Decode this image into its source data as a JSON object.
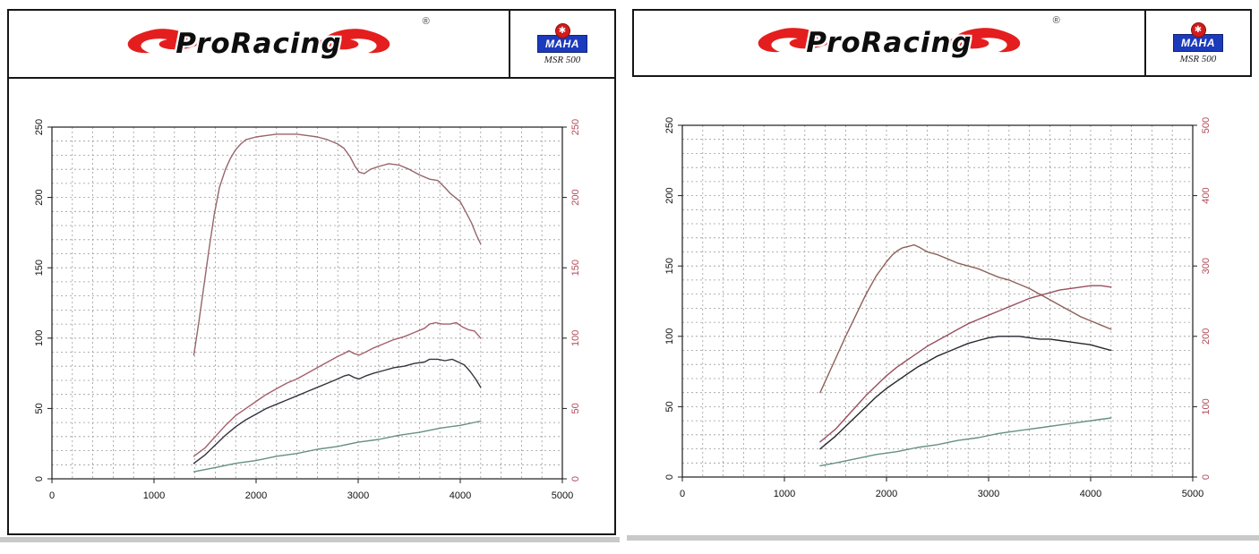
{
  "panels": [
    {
      "brand": "ProRacing",
      "registered": "®",
      "maha": {
        "name": "MAHA",
        "model": "MSR 500"
      }
    },
    {
      "brand": "ProRacing",
      "registered": "®",
      "maha": {
        "name": "MAHA",
        "model": "MSR 500"
      }
    }
  ],
  "chart_data": [
    {
      "type": "line",
      "title": "",
      "xlabel": "",
      "ylabel": "",
      "grid": "dashed",
      "x_axis": {
        "min": 0,
        "max": 5000,
        "minor_step": 200,
        "ticks": [
          0,
          1000,
          2000,
          3000,
          4000,
          5000
        ]
      },
      "y_left": {
        "min": 0,
        "max": 250,
        "minor_step": 10,
        "ticks": [
          0,
          50,
          100,
          150,
          200,
          250
        ],
        "color": "#111111"
      },
      "y_right": {
        "min": 0,
        "max": 250,
        "ticks": [
          0,
          50,
          100,
          150,
          200,
          250
        ],
        "color": "#b24a58"
      },
      "series": [
        {
          "name": "torque-maroon",
          "color": "#96666c",
          "axis": "left",
          "points": [
            [
              1390,
              88
            ],
            [
              1440,
              112
            ],
            [
              1490,
              138
            ],
            [
              1540,
              164
            ],
            [
              1590,
              188
            ],
            [
              1640,
              207
            ],
            [
              1700,
              220
            ],
            [
              1750,
              228
            ],
            [
              1800,
              234
            ],
            [
              1850,
              238
            ],
            [
              1900,
              241
            ],
            [
              2000,
              243
            ],
            [
              2100,
              244
            ],
            [
              2200,
              245
            ],
            [
              2300,
              245
            ],
            [
              2400,
              245
            ],
            [
              2500,
              244
            ],
            [
              2600,
              243
            ],
            [
              2700,
              241
            ],
            [
              2800,
              238
            ],
            [
              2860,
              235
            ],
            [
              2920,
              229
            ],
            [
              2970,
              222
            ],
            [
              3010,
              218
            ],
            [
              3060,
              217
            ],
            [
              3120,
              220
            ],
            [
              3200,
              222
            ],
            [
              3300,
              224
            ],
            [
              3400,
              223
            ],
            [
              3500,
              220
            ],
            [
              3600,
              216
            ],
            [
              3700,
              213
            ],
            [
              3780,
              212
            ],
            [
              3850,
              207
            ],
            [
              3900,
              203
            ],
            [
              3950,
              200
            ],
            [
              4000,
              197
            ],
            [
              4060,
              189
            ],
            [
              4110,
              182
            ],
            [
              4160,
              173
            ],
            [
              4200,
              167
            ]
          ]
        },
        {
          "name": "power-red",
          "color": "#a4606c",
          "axis": "left",
          "points": [
            [
              1390,
              16
            ],
            [
              1500,
              22
            ],
            [
              1600,
              30
            ],
            [
              1700,
              38
            ],
            [
              1800,
              45
            ],
            [
              1900,
              50
            ],
            [
              2000,
              55
            ],
            [
              2100,
              60
            ],
            [
              2200,
              64
            ],
            [
              2300,
              68
            ],
            [
              2400,
              71
            ],
            [
              2500,
              75
            ],
            [
              2600,
              79
            ],
            [
              2700,
              83
            ],
            [
              2800,
              87
            ],
            [
              2860,
              89
            ],
            [
              2910,
              91
            ],
            [
              2960,
              89
            ],
            [
              3010,
              88
            ],
            [
              3070,
              90
            ],
            [
              3150,
              93
            ],
            [
              3250,
              96
            ],
            [
              3350,
              99
            ],
            [
              3450,
              101
            ],
            [
              3550,
              104
            ],
            [
              3650,
              107
            ],
            [
              3700,
              110
            ],
            [
              3760,
              111
            ],
            [
              3820,
              110
            ],
            [
              3900,
              110
            ],
            [
              3960,
              111
            ],
            [
              4020,
              108
            ],
            [
              4080,
              106
            ],
            [
              4140,
              105
            ],
            [
              4200,
              100
            ]
          ]
        },
        {
          "name": "power-dark",
          "color": "#34343f",
          "axis": "left",
          "points": [
            [
              1390,
              11
            ],
            [
              1500,
              17
            ],
            [
              1600,
              24
            ],
            [
              1700,
              31
            ],
            [
              1800,
              37
            ],
            [
              1900,
              42
            ],
            [
              2000,
              46
            ],
            [
              2100,
              50
            ],
            [
              2200,
              53
            ],
            [
              2300,
              56
            ],
            [
              2400,
              59
            ],
            [
              2500,
              62
            ],
            [
              2600,
              65
            ],
            [
              2700,
              68
            ],
            [
              2800,
              71
            ],
            [
              2860,
              73
            ],
            [
              2910,
              74
            ],
            [
              2960,
              72
            ],
            [
              3010,
              71
            ],
            [
              3070,
              73
            ],
            [
              3150,
              75
            ],
            [
              3250,
              77
            ],
            [
              3350,
              79
            ],
            [
              3450,
              80
            ],
            [
              3550,
              82
            ],
            [
              3650,
              83
            ],
            [
              3700,
              85
            ],
            [
              3780,
              85
            ],
            [
              3850,
              84
            ],
            [
              3920,
              85
            ],
            [
              3980,
              83
            ],
            [
              4040,
              81
            ],
            [
              4100,
              76
            ],
            [
              4150,
              71
            ],
            [
              4200,
              65
            ]
          ]
        },
        {
          "name": "baseline-green",
          "color": "#66907f",
          "axis": "left",
          "points": [
            [
              1390,
              5
            ],
            [
              1600,
              8
            ],
            [
              1800,
              11
            ],
            [
              2000,
              13
            ],
            [
              2200,
              16
            ],
            [
              2400,
              18
            ],
            [
              2600,
              21
            ],
            [
              2800,
              23
            ],
            [
              3000,
              26
            ],
            [
              3200,
              28
            ],
            [
              3400,
              31
            ],
            [
              3600,
              33
            ],
            [
              3800,
              36
            ],
            [
              4000,
              38
            ],
            [
              4200,
              41
            ]
          ]
        }
      ]
    },
    {
      "type": "line",
      "title": "",
      "xlabel": "",
      "ylabel": "",
      "grid": "dashed",
      "x_axis": {
        "min": 0,
        "max": 5000,
        "minor_step": 200,
        "ticks": [
          0,
          1000,
          2000,
          3000,
          4000,
          5000
        ]
      },
      "y_left": {
        "min": 0,
        "max": 250,
        "minor_step": 10,
        "ticks": [
          0,
          50,
          100,
          150,
          200,
          250
        ],
        "color": "#111111"
      },
      "y_right": {
        "min": 0,
        "max": 500,
        "ticks": [
          0,
          100,
          200,
          300,
          400,
          500
        ],
        "color": "#b24a58"
      },
      "series": [
        {
          "name": "torque-brown",
          "color": "#8d6058",
          "axis": "left",
          "points": [
            [
              1350,
              60
            ],
            [
              1400,
              68
            ],
            [
              1500,
              84
            ],
            [
              1600,
              100
            ],
            [
              1700,
              115
            ],
            [
              1800,
              130
            ],
            [
              1900,
              143
            ],
            [
              2000,
              153
            ],
            [
              2060,
              158
            ],
            [
              2110,
              161
            ],
            [
              2160,
              163
            ],
            [
              2220,
              164
            ],
            [
              2270,
              165
            ],
            [
              2330,
              163
            ],
            [
              2400,
              160
            ],
            [
              2500,
              158
            ],
            [
              2600,
              155
            ],
            [
              2700,
              152
            ],
            [
              2800,
              150
            ],
            [
              2900,
              148
            ],
            [
              3000,
              145
            ],
            [
              3100,
              142
            ],
            [
              3200,
              140
            ],
            [
              3300,
              137
            ],
            [
              3400,
              134
            ],
            [
              3500,
              130
            ],
            [
              3600,
              126
            ],
            [
              3700,
              122
            ],
            [
              3800,
              118
            ],
            [
              3900,
              114
            ],
            [
              4000,
              111
            ],
            [
              4100,
              108
            ],
            [
              4200,
              105
            ]
          ]
        },
        {
          "name": "power-red",
          "color": "#9a4e5e",
          "axis": "left",
          "points": [
            [
              1350,
              25
            ],
            [
              1400,
              28
            ],
            [
              1500,
              34
            ],
            [
              1600,
              42
            ],
            [
              1700,
              50
            ],
            [
              1800,
              58
            ],
            [
              1900,
              65
            ],
            [
              2000,
              72
            ],
            [
              2100,
              78
            ],
            [
              2200,
              83
            ],
            [
              2300,
              88
            ],
            [
              2400,
              93
            ],
            [
              2500,
              97
            ],
            [
              2600,
              101
            ],
            [
              2700,
              105
            ],
            [
              2800,
              109
            ],
            [
              2900,
              112
            ],
            [
              3000,
              115
            ],
            [
              3100,
              118
            ],
            [
              3200,
              121
            ],
            [
              3300,
              124
            ],
            [
              3400,
              127
            ],
            [
              3500,
              129
            ],
            [
              3600,
              131
            ],
            [
              3700,
              133
            ],
            [
              3800,
              134
            ],
            [
              3900,
              135
            ],
            [
              4000,
              136
            ],
            [
              4100,
              136
            ],
            [
              4200,
              135
            ]
          ]
        },
        {
          "name": "power-dark",
          "color": "#26262e",
          "axis": "left",
          "points": [
            [
              1350,
              20
            ],
            [
              1400,
              23
            ],
            [
              1500,
              29
            ],
            [
              1600,
              36
            ],
            [
              1700,
              43
            ],
            [
              1800,
              50
            ],
            [
              1900,
              57
            ],
            [
              2000,
              63
            ],
            [
              2100,
              68
            ],
            [
              2200,
              73
            ],
            [
              2300,
              78
            ],
            [
              2400,
              82
            ],
            [
              2500,
              86
            ],
            [
              2600,
              89
            ],
            [
              2700,
              92
            ],
            [
              2800,
              95
            ],
            [
              2900,
              97
            ],
            [
              3000,
              99
            ],
            [
              3100,
              100
            ],
            [
              3200,
              100
            ],
            [
              3300,
              100
            ],
            [
              3400,
              99
            ],
            [
              3500,
              98
            ],
            [
              3600,
              98
            ],
            [
              3700,
              97
            ],
            [
              3800,
              96
            ],
            [
              3900,
              95
            ],
            [
              4000,
              94
            ],
            [
              4100,
              92
            ],
            [
              4200,
              90
            ]
          ]
        },
        {
          "name": "baseline-green",
          "color": "#66907f",
          "axis": "left",
          "points": [
            [
              1350,
              8
            ],
            [
              1500,
              10
            ],
            [
              1700,
              13
            ],
            [
              1900,
              16
            ],
            [
              2100,
              18
            ],
            [
              2300,
              21
            ],
            [
              2500,
              23
            ],
            [
              2700,
              26
            ],
            [
              2900,
              28
            ],
            [
              3100,
              31
            ],
            [
              3300,
              33
            ],
            [
              3500,
              35
            ],
            [
              3700,
              37
            ],
            [
              3900,
              39
            ],
            [
              4100,
              41
            ],
            [
              4200,
              42
            ]
          ]
        }
      ]
    }
  ]
}
